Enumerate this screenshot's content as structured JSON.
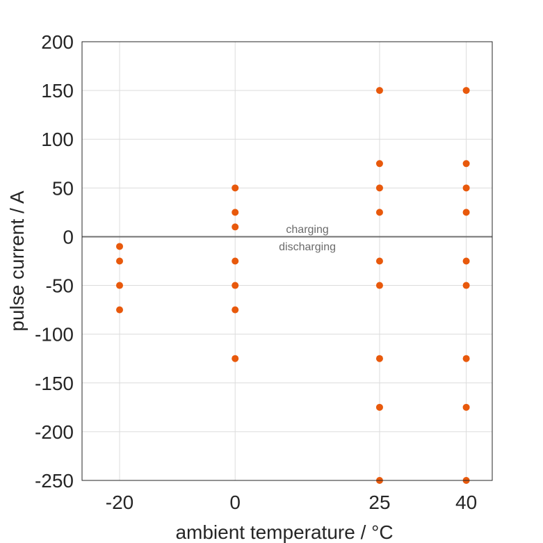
{
  "chart_data": {
    "type": "scatter",
    "xlabel": "ambient temperature / °C",
    "ylabel": "pulse current / A",
    "xlim": [
      -26.5,
      44.5
    ],
    "ylim": [
      -250,
      200
    ],
    "xticks": [
      -20,
      0,
      25,
      40
    ],
    "yticks": [
      200,
      150,
      100,
      50,
      0,
      -50,
      -100,
      -150,
      -200,
      -250
    ],
    "grid": true,
    "marker_color": "#e8590c",
    "reference_line": {
      "y": 0,
      "color": "#707070"
    },
    "annotations": [
      {
        "text": "charging",
        "x": 12.5,
        "y": 8
      },
      {
        "text": "discharging",
        "x": 12.5,
        "y": -9.5
      }
    ],
    "series": [
      {
        "points": [
          {
            "x": -20,
            "y": -10
          },
          {
            "x": -20,
            "y": -25
          },
          {
            "x": -20,
            "y": -50
          },
          {
            "x": -20,
            "y": -75
          },
          {
            "x": 0,
            "y": 50
          },
          {
            "x": 0,
            "y": 25
          },
          {
            "x": 0,
            "y": 10
          },
          {
            "x": 0,
            "y": -25
          },
          {
            "x": 0,
            "y": -50
          },
          {
            "x": 0,
            "y": -75
          },
          {
            "x": 0,
            "y": -125
          },
          {
            "x": 25,
            "y": 150
          },
          {
            "x": 25,
            "y": 75
          },
          {
            "x": 25,
            "y": 50
          },
          {
            "x": 25,
            "y": 25
          },
          {
            "x": 25,
            "y": -25
          },
          {
            "x": 25,
            "y": -50
          },
          {
            "x": 25,
            "y": -125
          },
          {
            "x": 25,
            "y": -175
          },
          {
            "x": 25,
            "y": -250
          },
          {
            "x": 40,
            "y": 150
          },
          {
            "x": 40,
            "y": 75
          },
          {
            "x": 40,
            "y": 50
          },
          {
            "x": 40,
            "y": 25
          },
          {
            "x": 40,
            "y": -25
          },
          {
            "x": 40,
            "y": -50
          },
          {
            "x": 40,
            "y": -125
          },
          {
            "x": 40,
            "y": -175
          },
          {
            "x": 40,
            "y": -250
          }
        ]
      }
    ]
  }
}
